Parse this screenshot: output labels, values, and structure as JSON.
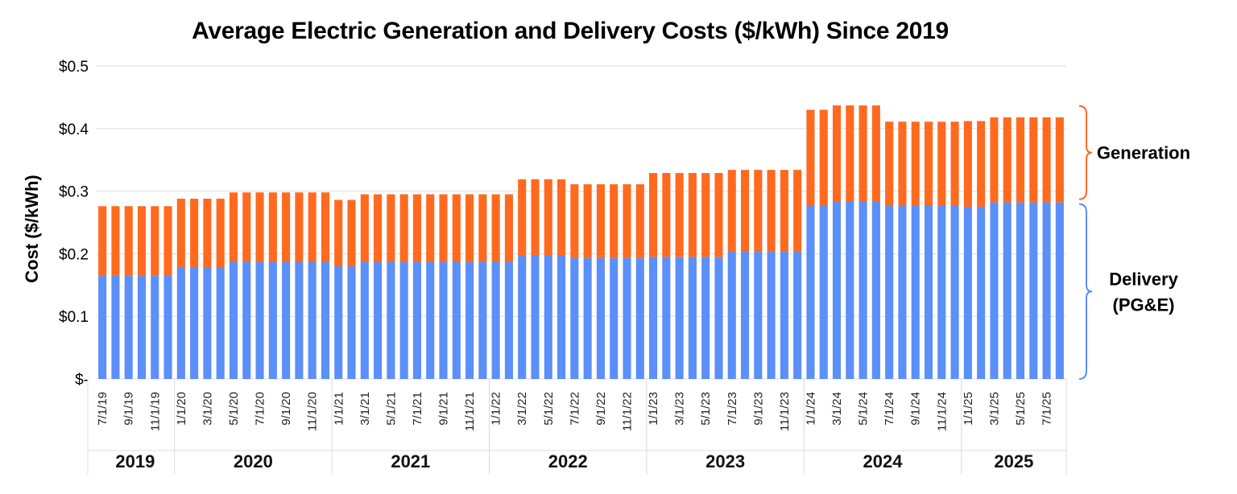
{
  "chart_data": {
    "type": "bar",
    "stacked": true,
    "title": "Average Electric Generation and Delivery Costs ($/kWh) Since 2019",
    "ylabel": "Cost ($/kWh)",
    "ylim": [
      0,
      0.5
    ],
    "yticks": [
      {
        "value": 0,
        "label": "$-"
      },
      {
        "value": 0.1,
        "label": "$0.1"
      },
      {
        "value": 0.2,
        "label": "$0.2"
      },
      {
        "value": 0.3,
        "label": "$0.3"
      },
      {
        "value": 0.4,
        "label": "$0.4"
      },
      {
        "value": 0.5,
        "label": "$0.5"
      }
    ],
    "grid": true,
    "colors": {
      "delivery": "#5b8ff9",
      "generation": "#ff6a1f",
      "grid": "#dddddd"
    },
    "categories": [
      "7/1/19",
      "8/1/19",
      "9/1/19",
      "10/1/19",
      "11/1/19",
      "12/1/19",
      "1/1/20",
      "2/1/20",
      "3/1/20",
      "4/1/20",
      "5/1/20",
      "6/1/20",
      "7/1/20",
      "8/1/20",
      "9/1/20",
      "10/1/20",
      "11/1/20",
      "12/1/20",
      "1/1/21",
      "2/1/21",
      "3/1/21",
      "4/1/21",
      "5/1/21",
      "6/1/21",
      "7/1/21",
      "8/1/21",
      "9/1/21",
      "10/1/21",
      "11/1/21",
      "12/1/21",
      "1/1/22",
      "2/1/22",
      "3/1/22",
      "4/1/22",
      "5/1/22",
      "6/1/22",
      "7/1/22",
      "8/1/22",
      "9/1/22",
      "10/1/22",
      "11/1/22",
      "12/1/22",
      "1/1/23",
      "2/1/23",
      "3/1/23",
      "4/1/23",
      "5/1/23",
      "6/1/23",
      "7/1/23",
      "8/1/23",
      "9/1/23",
      "10/1/23",
      "11/1/23",
      "12/1/23",
      "1/1/24",
      "2/1/24",
      "3/1/24",
      "4/1/24",
      "5/1/24",
      "6/1/24",
      "7/1/24",
      "8/1/24",
      "9/1/24",
      "10/1/24",
      "11/1/24",
      "12/1/24",
      "1/1/25",
      "2/1/25",
      "3/1/25",
      "4/1/25",
      "5/1/25",
      "6/1/25",
      "7/1/25",
      "8/1/25"
    ],
    "tick_labels": [
      "7/1/19",
      "9/1/19",
      "11/1/19",
      "1/1/20",
      "3/1/20",
      "5/1/20",
      "7/1/20",
      "9/1/20",
      "11/1/20",
      "1/1/21",
      "3/1/21",
      "5/1/21",
      "7/1/21",
      "9/1/21",
      "11/1/21",
      "1/1/22",
      "3/1/22",
      "5/1/22",
      "7/1/22",
      "9/1/22",
      "11/1/22",
      "1/1/23",
      "3/1/23",
      "5/1/23",
      "7/1/23",
      "9/1/23",
      "11/1/23",
      "1/1/24",
      "3/1/24",
      "5/1/24",
      "7/1/24",
      "9/1/24",
      "11/1/24",
      "1/1/25",
      "3/1/25",
      "5/1/25",
      "7/1/25"
    ],
    "years": [
      {
        "label": "2019",
        "months": 6
      },
      {
        "label": "2020",
        "months": 12
      },
      {
        "label": "2021",
        "months": 12
      },
      {
        "label": "2022",
        "months": 12
      },
      {
        "label": "2023",
        "months": 12
      },
      {
        "label": "2024",
        "months": 12
      },
      {
        "label": "2025",
        "months": 8
      }
    ],
    "series": [
      {
        "name": "Delivery (PG&E)",
        "values": [
          0.165,
          0.165,
          0.165,
          0.165,
          0.165,
          0.165,
          0.178,
          0.178,
          0.178,
          0.178,
          0.187,
          0.187,
          0.187,
          0.187,
          0.187,
          0.187,
          0.187,
          0.187,
          0.18,
          0.18,
          0.187,
          0.187,
          0.187,
          0.187,
          0.187,
          0.187,
          0.187,
          0.187,
          0.187,
          0.187,
          0.187,
          0.187,
          0.198,
          0.198,
          0.198,
          0.198,
          0.193,
          0.193,
          0.193,
          0.193,
          0.193,
          0.193,
          0.195,
          0.195,
          0.195,
          0.195,
          0.195,
          0.195,
          0.203,
          0.203,
          0.203,
          0.203,
          0.203,
          0.203,
          0.277,
          0.277,
          0.284,
          0.284,
          0.284,
          0.284,
          0.277,
          0.277,
          0.277,
          0.277,
          0.277,
          0.277,
          0.275,
          0.275,
          0.282,
          0.282,
          0.282,
          0.282,
          0.282,
          0.282
        ]
      },
      {
        "name": "Generation",
        "values": [
          0.111,
          0.111,
          0.111,
          0.111,
          0.111,
          0.111,
          0.11,
          0.11,
          0.11,
          0.11,
          0.111,
          0.111,
          0.111,
          0.111,
          0.111,
          0.111,
          0.111,
          0.111,
          0.106,
          0.106,
          0.108,
          0.108,
          0.108,
          0.108,
          0.108,
          0.108,
          0.108,
          0.108,
          0.108,
          0.108,
          0.108,
          0.108,
          0.121,
          0.121,
          0.121,
          0.121,
          0.118,
          0.118,
          0.118,
          0.118,
          0.118,
          0.118,
          0.134,
          0.134,
          0.134,
          0.134,
          0.134,
          0.134,
          0.131,
          0.131,
          0.131,
          0.131,
          0.131,
          0.131,
          0.153,
          0.153,
          0.153,
          0.153,
          0.153,
          0.153,
          0.134,
          0.134,
          0.134,
          0.134,
          0.134,
          0.134,
          0.137,
          0.137,
          0.136,
          0.136,
          0.136,
          0.136,
          0.136,
          0.136
        ]
      }
    ],
    "annotations": [
      {
        "series": "Generation",
        "lines": [
          "Generation"
        ]
      },
      {
        "series": "Delivery (PG&E)",
        "lines": [
          "Delivery",
          "(PG&E)"
        ]
      }
    ]
  }
}
